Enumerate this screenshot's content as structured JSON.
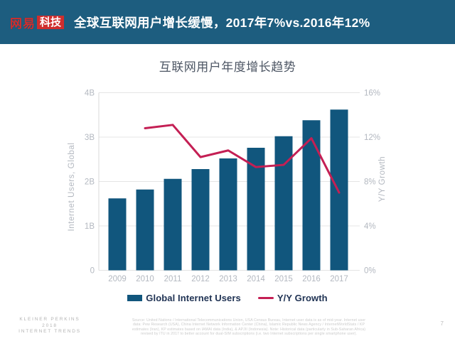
{
  "theme": {
    "header_bg": "#1d5d7f",
    "logo_red": "#cf2e2e",
    "bar_color": "#11567d",
    "line_color": "#c41f54",
    "axis_text": "#b3b8c0",
    "legend_text": "#203354",
    "grid_color": "#e4e4e4",
    "chart_title_color": "#4d5664"
  },
  "header": {
    "logo_primary": "网易",
    "logo_badge": "科技",
    "title": "全球互联网用户增长缓慢，2017年7%vs.2016年12%"
  },
  "chart_data": {
    "type": "bar",
    "title": "互联网用户年度增长趋势",
    "categories": [
      "2009",
      "2010",
      "2011",
      "2012",
      "2013",
      "2014",
      "2015",
      "2016",
      "2017"
    ],
    "series": [
      {
        "name": "Global Internet Users",
        "type": "bar",
        "axis": "left",
        "unit": "billions",
        "values": [
          1.62,
          1.82,
          2.06,
          2.28,
          2.52,
          2.76,
          3.02,
          3.38,
          3.62
        ]
      },
      {
        "name": "Y/Y Growth",
        "type": "line",
        "axis": "right",
        "unit": "percent",
        "values": [
          null,
          12.8,
          13.1,
          10.2,
          10.8,
          9.3,
          9.5,
          11.9,
          7.0
        ]
      }
    ],
    "left_axis": {
      "label": "Internet Users, Global",
      "ticks": [
        "0",
        "1B",
        "2B",
        "3B",
        "4B"
      ],
      "range": [
        0,
        4
      ]
    },
    "right_axis": {
      "label": "Y/Y Growth",
      "ticks": [
        "0%",
        "4%",
        "8%",
        "12%",
        "16%"
      ],
      "range": [
        0,
        16
      ]
    },
    "grid": true,
    "legend_position": "bottom"
  },
  "footer": {
    "brand_lines": [
      "KLEINER PERKINS",
      "2018",
      "INTERNET TRENDS"
    ],
    "source_lines": [
      "Source: United Nations / International Telecommunications Union, USA Census Bureau, Internet user data is as of mid-year. Internet user",
      "data: Pew Research (USA), China Internet Network Information Center (China), Islamic Republic News Agency / InternetWorldStats / KP",
      "estimates (Iran), KP estimates based on IAMAI data (India), & APJII (Indonesia). Note: Historical data (particularly in Sub-Saharan Africa)",
      "revised by ITU in 2017 to better account for dual-SIM subscriptions (i.e. two Internet subscriptions per single smartphone user)."
    ],
    "page_number": "7"
  }
}
